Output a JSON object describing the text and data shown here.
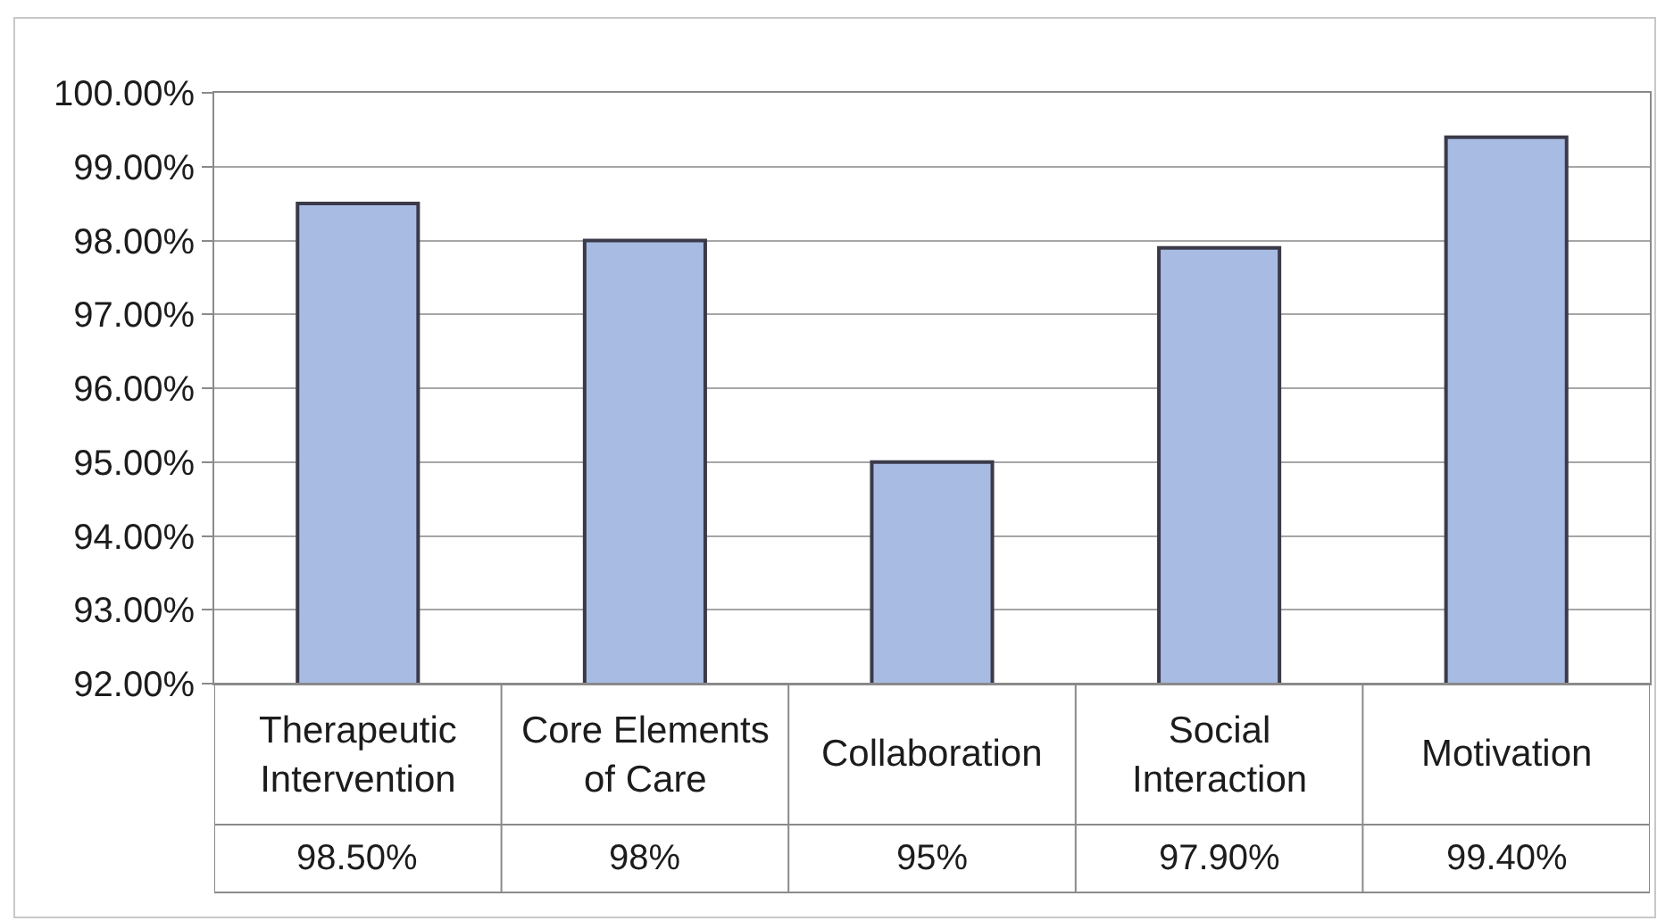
{
  "chart_data": {
    "type": "bar",
    "categories": [
      "Therapeutic Intervention",
      "Core Elements of Care",
      "Collaboration",
      "Social Interaction",
      "Motivation"
    ],
    "values": [
      98.5,
      98,
      95,
      97.9,
      99.4
    ],
    "value_labels": [
      "98.50%",
      "98%",
      "95%",
      "97.90%",
      "99.40%"
    ],
    "color": "#a8bbe3",
    "ylim": [
      92,
      100
    ],
    "yticks": [
      {
        "value": 92,
        "label": "92.00%"
      },
      {
        "value": 93,
        "label": "93.00%"
      },
      {
        "value": 94,
        "label": "94.00%"
      },
      {
        "value": 95,
        "label": "95.00%"
      },
      {
        "value": 96,
        "label": "96.00%"
      },
      {
        "value": 97,
        "label": "97.00%"
      },
      {
        "value": 98,
        "label": "98.00%"
      },
      {
        "value": 99,
        "label": "99.00%"
      },
      {
        "value": 100,
        "label": "100.00%"
      }
    ],
    "grid": "y"
  }
}
